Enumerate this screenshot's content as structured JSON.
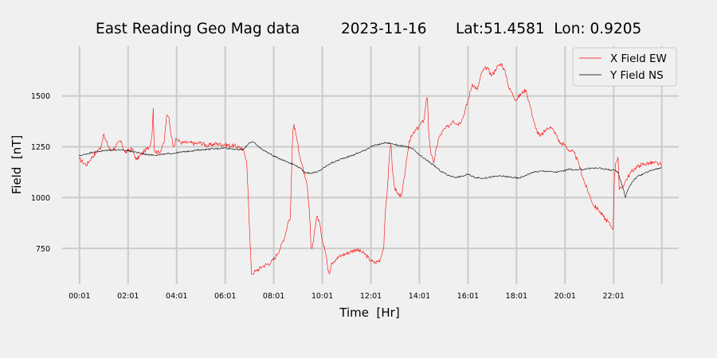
{
  "chart_data": {
    "type": "line",
    "title": {
      "main": "East Reading Geo Mag data",
      "date": "2023-11-16",
      "location": "Lat:51.4581  Lon: 0.9205"
    },
    "xlabel": "Time  [Hr]",
    "ylabel": "Field  [nT]",
    "x_unit": "hours since 00:00",
    "xlim": [
      -0.7,
      24.7
    ],
    "ylim": [
      575,
      1745
    ],
    "x_ticks": [
      {
        "label": "00:01",
        "value": 0.017
      },
      {
        "label": "02:01",
        "value": 2.017
      },
      {
        "label": "04:01",
        "value": 4.017
      },
      {
        "label": "06:01",
        "value": 6.017
      },
      {
        "label": "08:01",
        "value": 8.017
      },
      {
        "label": "10:01",
        "value": 10.017
      },
      {
        "label": "12:01",
        "value": 12.017
      },
      {
        "label": "14:01",
        "value": 14.017
      },
      {
        "label": "16:01",
        "value": 16.017
      },
      {
        "label": "18:01",
        "value": 18.017
      },
      {
        "label": "20:01",
        "value": 20.017
      },
      {
        "label": "22:01",
        "value": 22.017
      },
      {
        "label": "",
        "value": 24.0
      }
    ],
    "y_ticks": [
      750,
      1000,
      1250,
      1500
    ],
    "grid": true,
    "legend_position": "top-right",
    "series": [
      {
        "name": "X Field EW",
        "color": "#ff0000",
        "points": [
          [
            0.0,
            1190
          ],
          [
            0.15,
            1175
          ],
          [
            0.3,
            1160
          ],
          [
            0.5,
            1195
          ],
          [
            0.7,
            1220
          ],
          [
            0.9,
            1250
          ],
          [
            1.0,
            1310
          ],
          [
            1.1,
            1280
          ],
          [
            1.3,
            1230
          ],
          [
            1.5,
            1250
          ],
          [
            1.7,
            1280
          ],
          [
            1.9,
            1220
          ],
          [
            2.0,
            1230
          ],
          [
            2.2,
            1240
          ],
          [
            2.35,
            1185
          ],
          [
            2.5,
            1205
          ],
          [
            2.7,
            1230
          ],
          [
            2.9,
            1250
          ],
          [
            3.0,
            1300
          ],
          [
            3.05,
            1440
          ],
          [
            3.1,
            1230
          ],
          [
            3.3,
            1220
          ],
          [
            3.5,
            1270
          ],
          [
            3.6,
            1400
          ],
          [
            3.7,
            1395
          ],
          [
            3.8,
            1300
          ],
          [
            3.9,
            1250
          ],
          [
            4.0,
            1290
          ],
          [
            4.2,
            1270
          ],
          [
            4.5,
            1270
          ],
          [
            4.8,
            1265
          ],
          [
            5.0,
            1270
          ],
          [
            5.3,
            1255
          ],
          [
            5.6,
            1265
          ],
          [
            6.0,
            1260
          ],
          [
            6.3,
            1255
          ],
          [
            6.6,
            1250
          ],
          [
            6.8,
            1225
          ],
          [
            6.9,
            1180
          ],
          [
            6.95,
            1050
          ],
          [
            7.0,
            900
          ],
          [
            7.05,
            750
          ],
          [
            7.1,
            625
          ],
          [
            7.3,
            640
          ],
          [
            7.6,
            665
          ],
          [
            7.9,
            680
          ],
          [
            8.1,
            710
          ],
          [
            8.3,
            755
          ],
          [
            8.5,
            820
          ],
          [
            8.6,
            880
          ],
          [
            8.7,
            900
          ],
          [
            8.75,
            1120
          ],
          [
            8.8,
            1330
          ],
          [
            8.85,
            1360
          ],
          [
            8.95,
            1300
          ],
          [
            9.1,
            1200
          ],
          [
            9.3,
            1100
          ],
          [
            9.4,
            1050
          ],
          [
            9.5,
            900
          ],
          [
            9.55,
            760
          ],
          [
            9.6,
            750
          ],
          [
            9.7,
            840
          ],
          [
            9.8,
            910
          ],
          [
            9.9,
            880
          ],
          [
            10.0,
            800
          ],
          [
            10.1,
            760
          ],
          [
            10.2,
            700
          ],
          [
            10.25,
            640
          ],
          [
            10.3,
            625
          ],
          [
            10.4,
            680
          ],
          [
            10.6,
            700
          ],
          [
            10.8,
            715
          ],
          [
            11.0,
            725
          ],
          [
            11.2,
            735
          ],
          [
            11.4,
            745
          ],
          [
            11.6,
            735
          ],
          [
            11.8,
            720
          ],
          [
            12.0,
            690
          ],
          [
            12.2,
            680
          ],
          [
            12.4,
            695
          ],
          [
            12.55,
            760
          ],
          [
            12.6,
            900
          ],
          [
            12.7,
            1050
          ],
          [
            12.8,
            1240
          ],
          [
            12.85,
            1260
          ],
          [
            12.9,
            1140
          ],
          [
            13.0,
            1050
          ],
          [
            13.1,
            1020
          ],
          [
            13.2,
            1005
          ],
          [
            13.3,
            1020
          ],
          [
            13.4,
            1100
          ],
          [
            13.5,
            1200
          ],
          [
            13.6,
            1280
          ],
          [
            13.8,
            1320
          ],
          [
            14.0,
            1350
          ],
          [
            14.2,
            1380
          ],
          [
            14.3,
            1480
          ],
          [
            14.35,
            1490
          ],
          [
            14.4,
            1320
          ],
          [
            14.5,
            1210
          ],
          [
            14.6,
            1170
          ],
          [
            14.8,
            1290
          ],
          [
            15.0,
            1330
          ],
          [
            15.2,
            1350
          ],
          [
            15.4,
            1380
          ],
          [
            15.6,
            1360
          ],
          [
            15.8,
            1390
          ],
          [
            16.0,
            1470
          ],
          [
            16.2,
            1560
          ],
          [
            16.4,
            1530
          ],
          [
            16.6,
            1620
          ],
          [
            16.8,
            1640
          ],
          [
            17.0,
            1600
          ],
          [
            17.2,
            1640
          ],
          [
            17.4,
            1660
          ],
          [
            17.6,
            1600
          ],
          [
            17.7,
            1540
          ],
          [
            17.8,
            1520
          ],
          [
            18.0,
            1480
          ],
          [
            18.2,
            1510
          ],
          [
            18.4,
            1530
          ],
          [
            18.6,
            1440
          ],
          [
            18.8,
            1340
          ],
          [
            19.0,
            1300
          ],
          [
            19.2,
            1330
          ],
          [
            19.4,
            1350
          ],
          [
            19.6,
            1320
          ],
          [
            19.8,
            1270
          ],
          [
            20.0,
            1260
          ],
          [
            20.2,
            1230
          ],
          [
            20.4,
            1220
          ],
          [
            20.6,
            1160
          ],
          [
            20.8,
            1080
          ],
          [
            21.0,
            1020
          ],
          [
            21.2,
            960
          ],
          [
            21.4,
            940
          ],
          [
            21.6,
            905
          ],
          [
            21.8,
            880
          ],
          [
            21.9,
            860
          ],
          [
            22.0,
            850
          ],
          [
            22.05,
            1100
          ],
          [
            22.1,
            1170
          ],
          [
            22.2,
            1200
          ],
          [
            22.25,
            1040
          ],
          [
            22.35,
            1045
          ],
          [
            22.5,
            1080
          ],
          [
            22.7,
            1120
          ],
          [
            22.9,
            1145
          ],
          [
            23.1,
            1160
          ],
          [
            23.3,
            1165
          ],
          [
            23.5,
            1170
          ],
          [
            23.7,
            1170
          ],
          [
            23.9,
            1165
          ],
          [
            24.0,
            1160
          ]
        ]
      },
      {
        "name": "Y Field NS",
        "color": "#000000",
        "points": [
          [
            0.0,
            1205
          ],
          [
            0.3,
            1215
          ],
          [
            0.6,
            1225
          ],
          [
            1.0,
            1230
          ],
          [
            1.3,
            1235
          ],
          [
            1.6,
            1235
          ],
          [
            2.0,
            1230
          ],
          [
            2.3,
            1225
          ],
          [
            2.6,
            1215
          ],
          [
            3.0,
            1210
          ],
          [
            3.3,
            1210
          ],
          [
            3.6,
            1215
          ],
          [
            4.0,
            1220
          ],
          [
            4.3,
            1225
          ],
          [
            4.6,
            1230
          ],
          [
            5.0,
            1235
          ],
          [
            5.3,
            1238
          ],
          [
            5.6,
            1240
          ],
          [
            6.0,
            1245
          ],
          [
            6.3,
            1240
          ],
          [
            6.6,
            1235
          ],
          [
            6.8,
            1240
          ],
          [
            7.0,
            1270
          ],
          [
            7.15,
            1275
          ],
          [
            7.3,
            1260
          ],
          [
            7.5,
            1240
          ],
          [
            7.8,
            1220
          ],
          [
            8.0,
            1205
          ],
          [
            8.3,
            1190
          ],
          [
            8.6,
            1175
          ],
          [
            8.9,
            1160
          ],
          [
            9.1,
            1145
          ],
          [
            9.3,
            1125
          ],
          [
            9.5,
            1120
          ],
          [
            9.8,
            1125
          ],
          [
            10.0,
            1140
          ],
          [
            10.3,
            1165
          ],
          [
            10.6,
            1180
          ],
          [
            10.9,
            1195
          ],
          [
            11.2,
            1205
          ],
          [
            11.5,
            1220
          ],
          [
            11.8,
            1235
          ],
          [
            12.0,
            1250
          ],
          [
            12.3,
            1260
          ],
          [
            12.6,
            1270
          ],
          [
            12.9,
            1265
          ],
          [
            13.2,
            1255
          ],
          [
            13.5,
            1250
          ],
          [
            13.8,
            1235
          ],
          [
            14.0,
            1210
          ],
          [
            14.3,
            1185
          ],
          [
            14.6,
            1160
          ],
          [
            14.9,
            1130
          ],
          [
            15.2,
            1110
          ],
          [
            15.5,
            1100
          ],
          [
            15.8,
            1105
          ],
          [
            16.0,
            1115
          ],
          [
            16.3,
            1100
          ],
          [
            16.6,
            1095
          ],
          [
            16.9,
            1100
          ],
          [
            17.2,
            1105
          ],
          [
            17.5,
            1105
          ],
          [
            17.8,
            1100
          ],
          [
            18.1,
            1095
          ],
          [
            18.4,
            1110
          ],
          [
            18.7,
            1125
          ],
          [
            19.0,
            1130
          ],
          [
            19.3,
            1130
          ],
          [
            19.6,
            1125
          ],
          [
            19.9,
            1130
          ],
          [
            20.2,
            1140
          ],
          [
            20.5,
            1135
          ],
          [
            20.8,
            1140
          ],
          [
            21.1,
            1145
          ],
          [
            21.4,
            1145
          ],
          [
            21.7,
            1140
          ],
          [
            22.0,
            1135
          ],
          [
            22.2,
            1125
          ],
          [
            22.3,
            1085
          ],
          [
            22.45,
            1030
          ],
          [
            22.5,
            1000
          ],
          [
            22.6,
            1040
          ],
          [
            22.8,
            1080
          ],
          [
            23.0,
            1105
          ],
          [
            23.3,
            1120
          ],
          [
            23.6,
            1135
          ],
          [
            23.9,
            1145
          ],
          [
            24.0,
            1150
          ]
        ]
      }
    ]
  }
}
